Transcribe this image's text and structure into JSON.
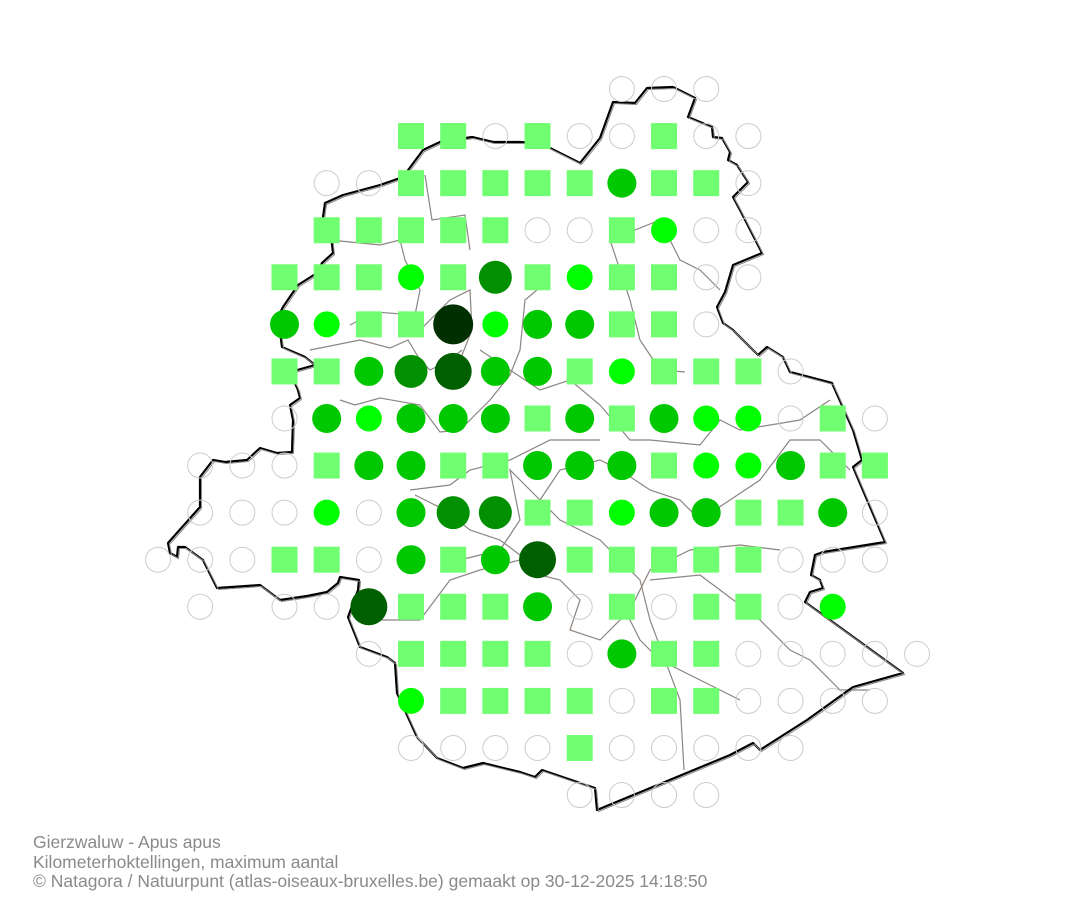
{
  "caption": {
    "title": "Gierzwaluw - Apus apus",
    "subtitle": "Kilometerhoktellingen, maximum aantal",
    "credit": "© Natagora / Natuurpunt (atlas-oiseaux-bruxelles.be) gemaakt op 30-12-2025 14:18:50"
  },
  "map": {
    "cell_codes": {
      ".": "no cell",
      "o": "not visited / zero",
      "s": "visited, no count",
      "1": "level 1",
      "2": "level 2",
      "3": "level 3",
      "4": "level 4",
      "5": "level 5"
    },
    "colors": {
      "square": "#70ff70",
      "empty_stroke": "#cccccc",
      "level1": "#00ff00",
      "level2": "#00c800",
      "level3": "#009000",
      "level4": "#006000",
      "level5": "#003000",
      "border": "#000000",
      "commune_border": "#8c8580"
    },
    "grid_rows": [
      "...........ooo.....",
      "......ssosoosoo....",
      "....oosssss2sso....",
      "....sssssoos1oo....",
      "...sss1s3s1ssoo....",
      "...21ss5122sso.....",
      "...ss23422s1ssso...",
      "...o21222s2s211oso.",
      ".ooos22ss222s112ss.",
      ".ooo1o233ss122ss2o.",
      "ooosso2s24sssssooo.",
      ".o.oo4sss2ososso1..",
      ".....osssso2ssooooo",
      "......1ssssossoooo.",
      "......oooosooooo...",
      "..........oooo....."
    ]
  }
}
